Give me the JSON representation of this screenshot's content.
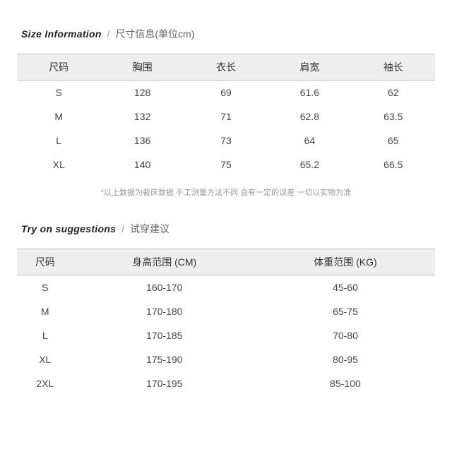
{
  "size_info": {
    "title_en": "Size Information",
    "title_sep": "/",
    "title_zh": "尺寸信息(单位cm)",
    "columns": [
      "尺码",
      "胸围",
      "衣长",
      "肩宽",
      "袖长"
    ],
    "rows": [
      [
        "S",
        "128",
        "69",
        "61.6",
        "62"
      ],
      [
        "M",
        "132",
        "71",
        "62.8",
        "63.5"
      ],
      [
        "L",
        "136",
        "73",
        "64",
        "65"
      ],
      [
        "XL",
        "140",
        "75",
        "65.2",
        "66.5"
      ]
    ],
    "footnote": "*以上数据为裁床数据 手工测量方法不同 会有一定的误差 一切以实物为准"
  },
  "try_on": {
    "title_en": "Try on suggestions",
    "title_sep": "/",
    "title_zh": "试穿建议",
    "columns": [
      "尺码",
      "身高范围 (CM)",
      "体重范围 (KG)"
    ],
    "rows": [
      [
        "S",
        "160-170",
        "45-60"
      ],
      [
        "M",
        "170-180",
        "65-75"
      ],
      [
        "L",
        "170-185",
        "70-80"
      ],
      [
        "XL",
        "175-190",
        "80-95"
      ],
      [
        "2XL",
        "170-195",
        "85-100"
      ]
    ]
  }
}
